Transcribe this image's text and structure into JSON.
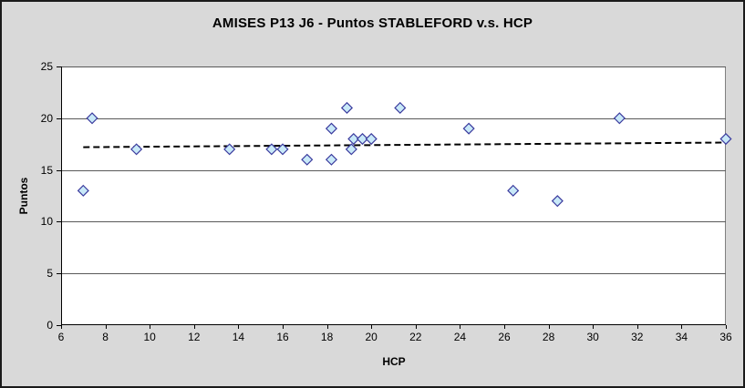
{
  "chart_data": {
    "type": "scatter",
    "title": "AMISES P13 J6 - Puntos STABLEFORD v.s. HCP",
    "xlabel": "HCP",
    "ylabel": "Puntos",
    "xlim": [
      6,
      36
    ],
    "ylim": [
      0,
      25
    ],
    "xticks": [
      6,
      8,
      10,
      12,
      14,
      16,
      18,
      20,
      22,
      24,
      26,
      28,
      30,
      32,
      34,
      36
    ],
    "yticks": [
      0,
      5,
      10,
      15,
      20,
      25
    ],
    "grid": "horizontal-only",
    "legend": "none",
    "series": [
      {
        "name": "Puntos STABLEFORD",
        "marker": "diamond",
        "points": [
          [
            7.0,
            13
          ],
          [
            7.4,
            20
          ],
          [
            9.4,
            17
          ],
          [
            13.6,
            17
          ],
          [
            15.5,
            17
          ],
          [
            16.0,
            17
          ],
          [
            17.1,
            16
          ],
          [
            18.2,
            16
          ],
          [
            18.2,
            19
          ],
          [
            18.9,
            21
          ],
          [
            19.1,
            17
          ],
          [
            19.2,
            18
          ],
          [
            19.6,
            18
          ],
          [
            20.0,
            18
          ],
          [
            21.3,
            21
          ],
          [
            24.4,
            19
          ],
          [
            26.4,
            13
          ],
          [
            28.4,
            12
          ],
          [
            31.2,
            20
          ],
          [
            36.0,
            18
          ]
        ]
      }
    ],
    "trendline": {
      "style": "dashed",
      "x_start": 7.0,
      "y_start": 17.2,
      "x_end": 36.0,
      "y_end": 17.65,
      "color": "#000000"
    },
    "colors": {
      "chart_background": "#D9D9D9",
      "plot_background": "#ffffff",
      "frame_border": "#1a1a1a",
      "plot_border": "#808080",
      "gridline": "#595959",
      "axis_line": "#000000",
      "marker_fill": "#C8E9F8",
      "marker_stroke": "#3B3B9E",
      "trendline": "#000000"
    }
  }
}
